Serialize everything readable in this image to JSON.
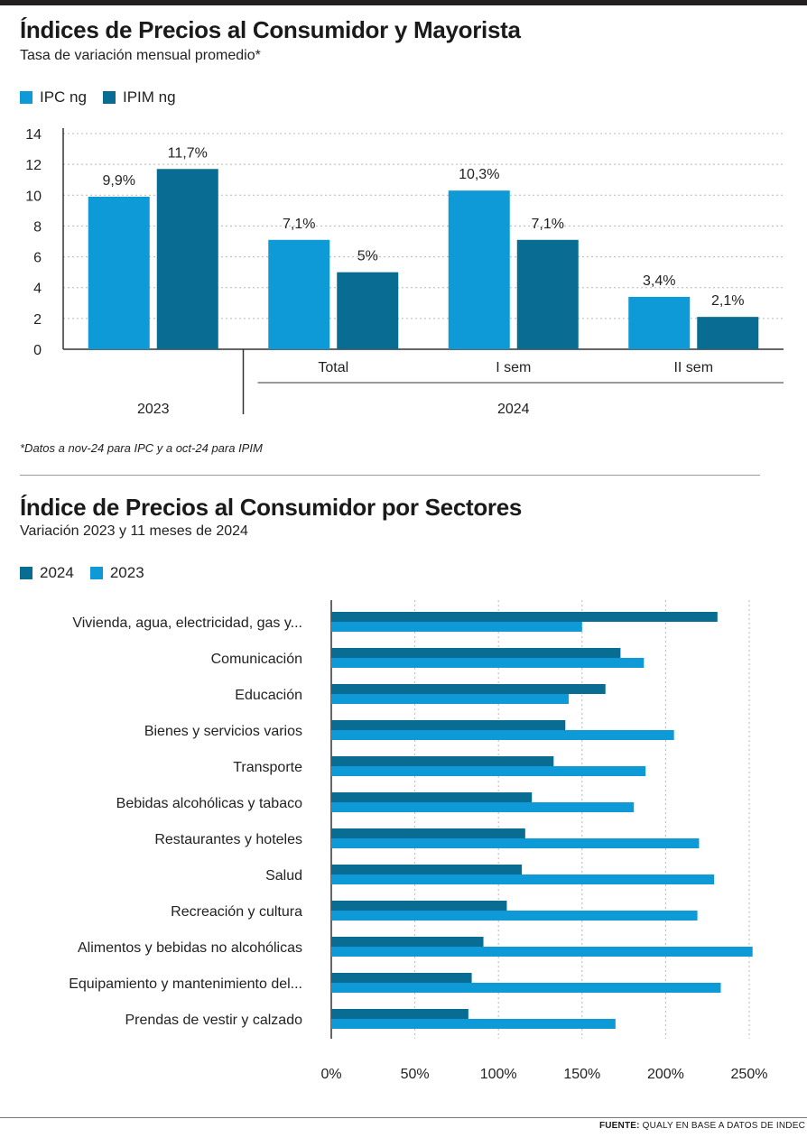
{
  "colors": {
    "light": "#0e9ad7",
    "dark": "#086c93",
    "grid": "#b8b8b8",
    "axis": "#333333"
  },
  "chart_data": [
    {
      "type": "bar",
      "title": "Índices de Precios al Consumidor y Mayorista",
      "subtitle": "Tasa de variación mensual promedio*",
      "series": [
        {
          "name": "IPC ng",
          "values": [
            9.9,
            7.1,
            10.3,
            3.4
          ],
          "labels": [
            "9,9%",
            "7,1%",
            "10,3%",
            "3,4%"
          ]
        },
        {
          "name": "IPIM ng",
          "values": [
            11.7,
            5,
            7.1,
            2.1
          ],
          "labels": [
            "11,7%",
            "5%",
            "7,1%",
            "2,1%"
          ]
        }
      ],
      "categories": [
        "",
        "Total",
        "I sem",
        "II sem"
      ],
      "groups": [
        "2023",
        "2024"
      ],
      "ylim": [
        0,
        14
      ],
      "yticks": [
        "0",
        "2",
        "4",
        "6",
        "8",
        "10",
        "12",
        "14"
      ],
      "footnote": "*Datos a nov-24 para IPC y a oct-24 para IPIM"
    },
    {
      "type": "bar",
      "orientation": "horizontal",
      "title": "Índice de Precios al Consumidor por Sectores",
      "subtitle": "Variación 2023 y 11 meses de 2024",
      "series": [
        {
          "name": "2024",
          "values": [
            231,
            173,
            164,
            140,
            133,
            120,
            116,
            114,
            105,
            91,
            84,
            82
          ]
        },
        {
          "name": "2023",
          "values": [
            150,
            187,
            142,
            205,
            188,
            181,
            220,
            229,
            219,
            252,
            233,
            170
          ]
        }
      ],
      "categories": [
        "Vivienda, agua, electricidad, gas y...",
        "Comunicación",
        "Educación",
        "Bienes y servicios varios",
        "Transporte",
        "Bebidas alcohólicas y tabaco",
        "Restaurantes y hoteles",
        "Salud",
        "Recreación y cultura",
        "Alimentos y bebidas no alcohólicas",
        "Equipamiento y mantenimiento del...",
        "Prendas de vestir y calzado"
      ],
      "xlim": [
        0,
        250
      ],
      "xticks": [
        "0%",
        "50%",
        "100%",
        "150%",
        "200%",
        "250%"
      ]
    }
  ],
  "source": {
    "label": "FUENTE:",
    "text": "QUALY EN BASE A DATOS DE INDEC"
  }
}
